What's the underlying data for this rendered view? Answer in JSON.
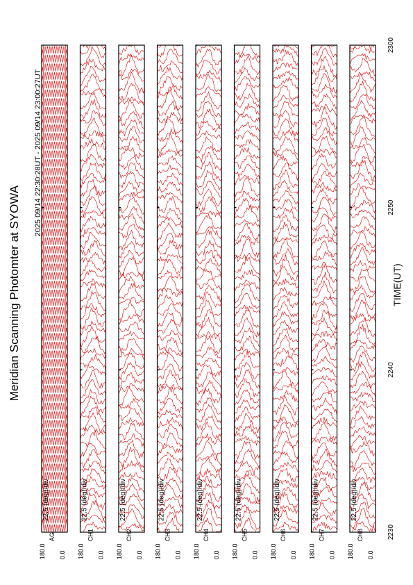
{
  "title": "Meridian Scanning Photomter at SYOWA",
  "subtitle": "2025 09/14 22:30:28UT - 2025 09/14 23:00:27UT",
  "xlabel": "TIME(UT)",
  "colors": {
    "trace": "#e00000",
    "frame": "#000000"
  },
  "chart_data": {
    "type": "line",
    "title": "Meridian Scanning Photomter at SYOWA",
    "subtitle": "2025 09/14 22:30:28UT - 2025 09/14 23:00:27UT",
    "xlabel": "TIME(UT)",
    "x_ticks": [
      "2230",
      "2240",
      "2250",
      "2300"
    ],
    "xlim": [
      "22:30",
      "23:00"
    ],
    "scale_label": "22.5 (deg)/div",
    "y_range_deg": [
      0.0,
      180.0
    ],
    "panels": [
      {
        "name": "AG",
        "ymin_label": "0.0",
        "ymax_label": "180.0",
        "scale": "22.5 (deg)/div"
      },
      {
        "name": "CH1",
        "ymin_label": "0.0",
        "ymax_label": "180.0",
        "scale": "22.5 (deg)/div"
      },
      {
        "name": "CH2",
        "ymin_label": "0.0",
        "ymax_label": "180.0",
        "scale": "22.5 (deg)/div"
      },
      {
        "name": "CH3",
        "ymin_label": "0.0",
        "ymax_label": "180.0",
        "scale": "22.5 (deg)/div"
      },
      {
        "name": "CH4",
        "ymin_label": "0.0",
        "ymax_label": "180.0",
        "scale": "22.5 (deg)/div"
      },
      {
        "name": "CH5",
        "ymin_label": "0.0",
        "ymax_label": "180.0",
        "scale": "22.5 (deg)/div"
      },
      {
        "name": "CH6",
        "ymin_label": "0.0",
        "ymax_label": "180.0",
        "scale": "22.5 (deg)/div"
      },
      {
        "name": "CH7",
        "ymin_label": "0.0",
        "ymax_label": "180.0",
        "scale": "22.5 (deg)/div"
      },
      {
        "name": "CH8",
        "ymin_label": "0.0",
        "ymax_label": "180.0",
        "scale": "22.5 (deg)/div"
      }
    ],
    "grid": false
  }
}
